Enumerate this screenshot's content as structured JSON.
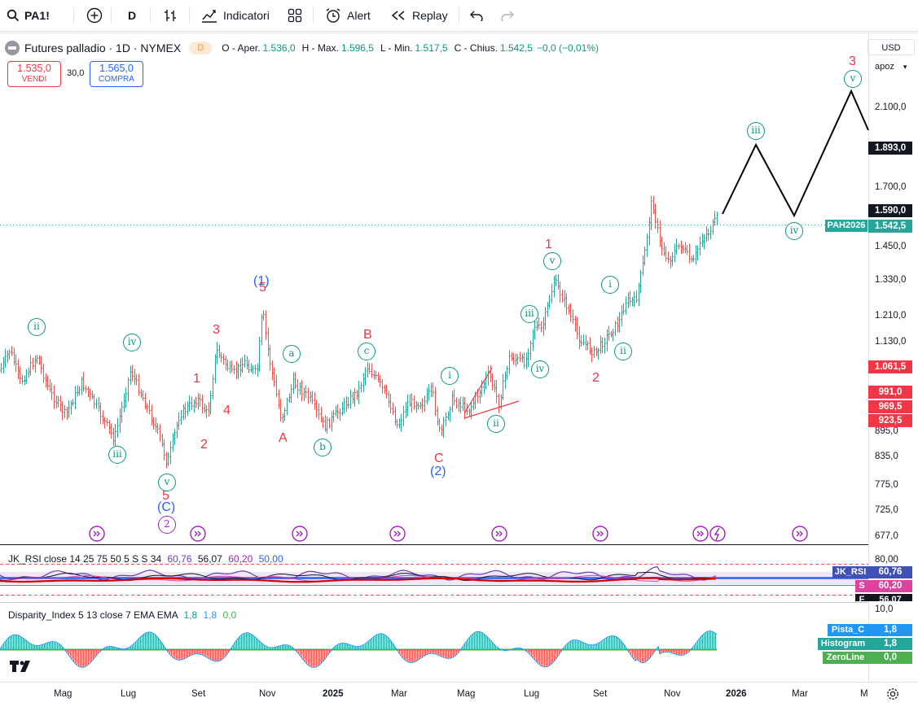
{
  "toolbar": {
    "symbol": "PA1!",
    "interval": "D",
    "indicators_label": "Indicatori",
    "alert_label": "Alert",
    "replay_label": "Replay"
  },
  "legend": {
    "title": "Futures palladio · 1D · NYMEX",
    "delayed_badge": "D",
    "open_label": "O - Aper.",
    "open": "1.536,0",
    "high_label": "H - Max.",
    "high": "1.596,5",
    "low_label": "L - Min.",
    "low": "1.517,5",
    "close_label": "C - Chius.",
    "close": "1.542,5",
    "change": "−0,0 (−0,01%)"
  },
  "trade": {
    "sell_price": "1.535,0",
    "sell_label": "VENDI",
    "spread": "30,0",
    "buy_price": "1.565,0",
    "buy_label": "COMPRA"
  },
  "scale": {
    "currency": "USD",
    "mode": "apoz",
    "price_ticks": [
      "2.100,0",
      "1.700,0",
      "1.450,0",
      "1.330,0",
      "1.210,0",
      "1.130,0",
      "895,0",
      "835,0",
      "775,0",
      "725,0",
      "677,0"
    ],
    "tags": {
      "target": "1.893,0",
      "last_high": "1.590,0",
      "contract_name": "PAH2026",
      "contract_price": "1.542,5",
      "red1": "1.061,5",
      "red2": "991,0",
      "red3": "969,5",
      "red4": "923,5"
    }
  },
  "time_axis": [
    "Mag",
    "Lug",
    "Set",
    "Nov",
    "2025",
    "Mar",
    "Mag",
    "Lug",
    "Set",
    "Nov",
    "2026",
    "Mar",
    "M"
  ],
  "waves": {
    "blue": [
      "(1)",
      "(C)",
      "(2)"
    ],
    "purple": [
      "2"
    ],
    "red": [
      "3",
      "1",
      "2",
      "4",
      "5",
      "5",
      "A",
      "B",
      "C",
      "1",
      "2",
      "3"
    ],
    "green": [
      "ii",
      "iii",
      "iv",
      "v",
      "a",
      "b",
      "c",
      "i",
      "ii",
      "iii",
      "iv",
      "v",
      "i",
      "ii",
      "iii",
      "iv",
      "v"
    ]
  },
  "rsi": {
    "title": "JK_RSI close 14 25 75 50 5 S S 34",
    "v1": "60,76",
    "v2": "56,07",
    "v3": "60,20",
    "v4": "50,00",
    "scale_top": "80,00",
    "tag_name": "JK_RSI",
    "tag_value": "60,76",
    "s_label": "S",
    "s_value": "60,20",
    "f_label": "F",
    "f_value": "56,07"
  },
  "disparity": {
    "title": "Disparity_Index 5 13 close 7 EMA EMA",
    "v1": "1,8",
    "v2": "1,8",
    "v3": "0,0",
    "scale_top": "10,0",
    "tags": [
      {
        "name": "Pista_C",
        "value": "1,8"
      },
      {
        "name": "Histogram",
        "value": "1,8"
      },
      {
        "name": "ZeroLine",
        "value": "0,0"
      }
    ]
  },
  "colors": {
    "up": "#26a69a",
    "down": "#ef5350",
    "wave_blue": "#2962ff",
    "wave_red": "#f23645",
    "wave_green": "#089981",
    "projection": "#000000"
  }
}
